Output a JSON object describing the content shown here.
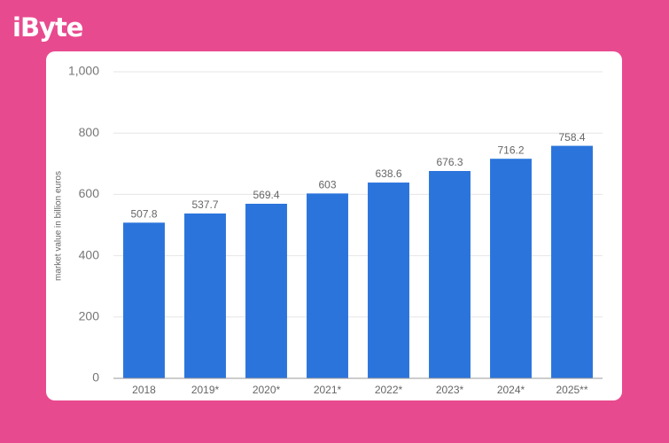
{
  "logo": "iByte",
  "chart_data": {
    "type": "bar",
    "y_label": "market value in billion euros",
    "categories": [
      "2018",
      "2019*",
      "2020*",
      "2021*",
      "2022*",
      "2023*",
      "2024*",
      "2025**"
    ],
    "values": [
      507.8,
      537.7,
      569.4,
      603,
      638.6,
      676.3,
      716.2,
      758.4
    ],
    "color": "#2b74dc",
    "ylim": [
      0,
      1000
    ],
    "yticks": [
      0,
      200,
      400,
      600,
      800,
      {
        "value": 1000,
        "label": "1,000"
      }
    ],
    "grid": true
  }
}
